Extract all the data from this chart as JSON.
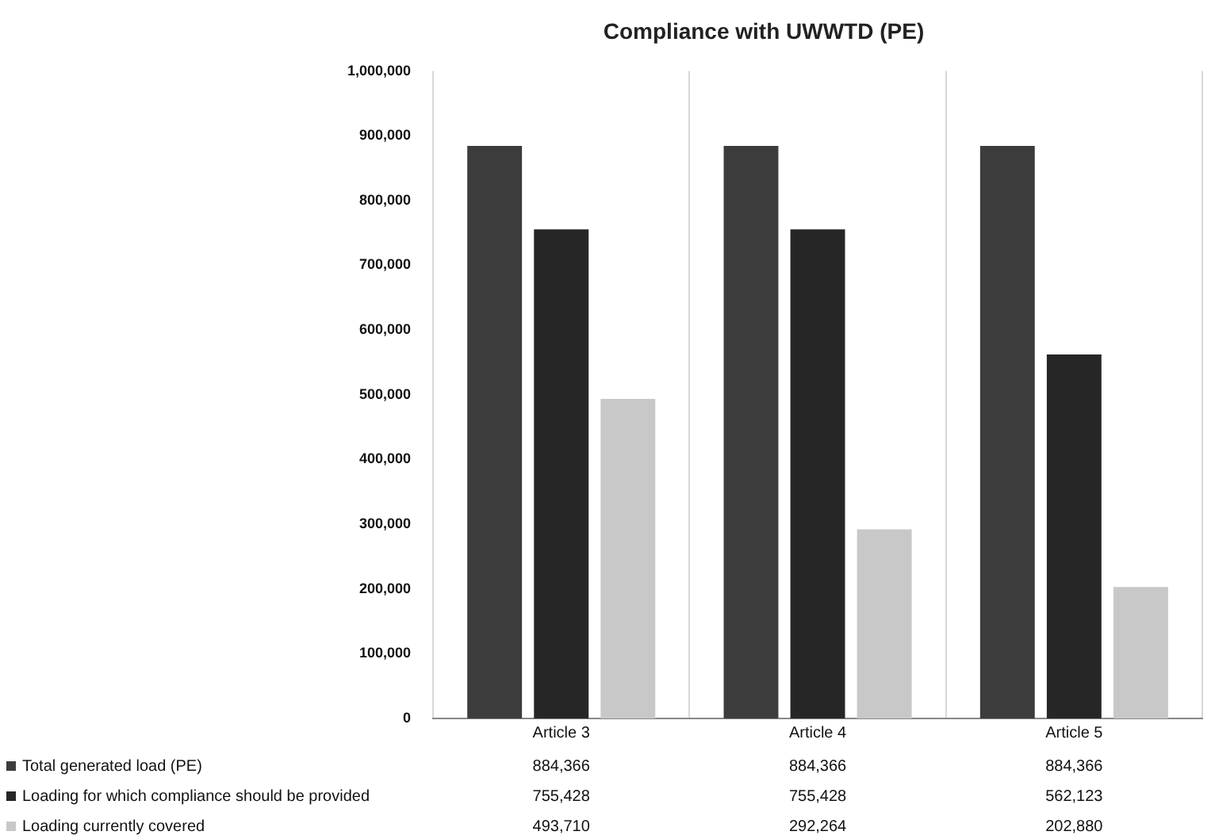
{
  "chart_data": {
    "type": "bar",
    "title": "Compliance with UWWTD (PE)",
    "categories": [
      "Article 3",
      "Article 4",
      "Article 5"
    ],
    "series": [
      {
        "name": "Total generated load (PE)",
        "color": "#3c3c3c",
        "values": [
          884366,
          884366,
          884366
        ],
        "value_labels": [
          "884,366",
          "884,366",
          "884,366"
        ]
      },
      {
        "name": "Loading for which compliance should be provided",
        "color": "#262626",
        "values": [
          755428,
          755428,
          562123
        ],
        "value_labels": [
          "755,428",
          "755,428",
          "562,123"
        ]
      },
      {
        "name": "Loading currently covered",
        "color": "#c8c8c8",
        "values": [
          493710,
          292264,
          202880
        ],
        "value_labels": [
          "493,710",
          "292,264",
          "202,880"
        ]
      }
    ],
    "ylim": [
      0,
      1000000
    ],
    "yticks": [
      {
        "value": 0,
        "label": "0"
      },
      {
        "value": 100000,
        "label": "100,000"
      },
      {
        "value": 200000,
        "label": "200,000"
      },
      {
        "value": 300000,
        "label": "300,000"
      },
      {
        "value": 400000,
        "label": "400,000"
      },
      {
        "value": 500000,
        "label": "500,000"
      },
      {
        "value": 600000,
        "label": "600,000"
      },
      {
        "value": 700000,
        "label": "700,000"
      },
      {
        "value": 800000,
        "label": "800,000"
      },
      {
        "value": 900000,
        "label": "900,000"
      },
      {
        "value": 1000000,
        "label": "1,000,000"
      }
    ],
    "grid": "x",
    "legend": "bottom left"
  }
}
